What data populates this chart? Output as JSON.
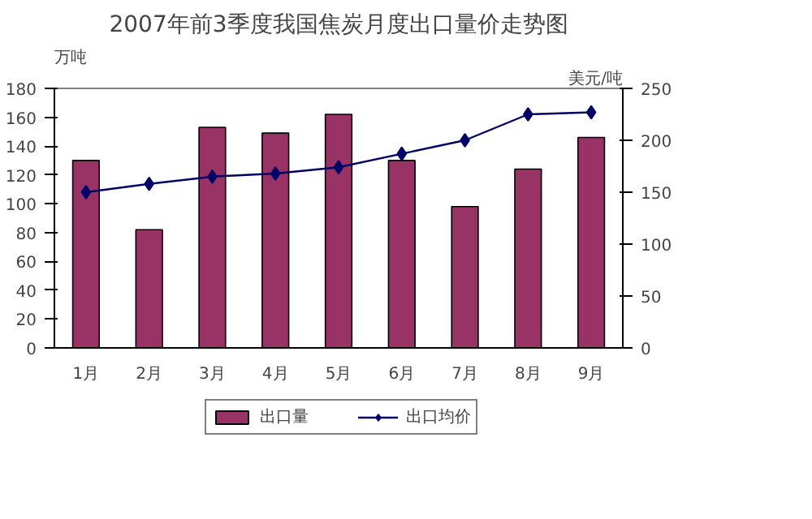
{
  "chart_data": {
    "type": "bar",
    "title": "2007年前3季度我国焦炭月度出口量价走势图",
    "ylabel": "万吨",
    "y2label": "美元/吨",
    "categories": [
      "1月",
      "2月",
      "3月",
      "4月",
      "5月",
      "6月",
      "7月",
      "8月",
      "9月"
    ],
    "series": [
      {
        "name": "出口量",
        "color": "#993366",
        "values": [
          130,
          82,
          153,
          149,
          162,
          130,
          98,
          124,
          146
        ]
      },
      {
        "name": "出口均价",
        "type": "line",
        "axis": "y2",
        "color": "#000066",
        "marker": "diamond",
        "values": [
          150,
          158,
          165,
          168,
          174,
          187,
          200,
          225,
          227
        ]
      }
    ],
    "ylim": [
      0,
      180
    ],
    "yticks": [
      0,
      20,
      40,
      60,
      80,
      100,
      120,
      140,
      160,
      180
    ],
    "y2lim": [
      0,
      250
    ],
    "y2ticks": [
      0,
      50,
      100,
      150,
      200,
      250
    ],
    "grid": false,
    "legend": "bottom"
  }
}
